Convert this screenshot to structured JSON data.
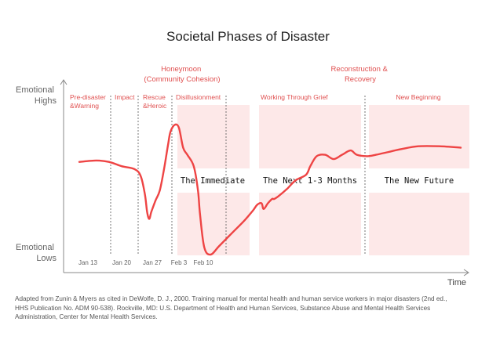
{
  "chart_data": {
    "type": "line",
    "title": "Societal Phases of Disaster",
    "ylabel_top": [
      "Emotional",
      "Highs"
    ],
    "ylabel_bottom": [
      "Emotional",
      "Lows"
    ],
    "xlabel": "Time",
    "x_ticks": [
      "Jan 13",
      "Jan 20",
      "Jan 27",
      "Feb 3",
      "Feb 10"
    ],
    "phases": [
      {
        "label": [
          "Pre-disaster",
          "&Warning"
        ]
      },
      {
        "label": [
          "Impact"
        ]
      },
      {
        "label": [
          "Rescue",
          "&Heroic"
        ]
      },
      {
        "label": [
          "Disillusionment"
        ]
      },
      {
        "label": [
          "Working Through Grief"
        ]
      },
      {
        "label": [
          "New Beginning"
        ]
      }
    ],
    "top_phases": [
      {
        "label": [
          "Honeymoon",
          "(Community Cohesion)"
        ]
      },
      {
        "label": [
          "Reconstruction &",
          "Recovery"
        ]
      }
    ],
    "bands": [
      {
        "label": "The Immediate"
      },
      {
        "label": "The Next 1-3 Months"
      },
      {
        "label": "The New Future"
      }
    ],
    "series": [
      {
        "color": "#ee4444",
        "points": [
          [
            0.0,
            0.65
          ],
          [
            0.04,
            0.66
          ],
          [
            0.07,
            0.65
          ],
          [
            0.1,
            0.62
          ],
          [
            0.13,
            0.6
          ],
          [
            0.145,
            0.55
          ],
          [
            0.155,
            0.42
          ],
          [
            0.16,
            0.3
          ],
          [
            0.165,
            0.25
          ],
          [
            0.17,
            0.3
          ],
          [
            0.18,
            0.38
          ],
          [
            0.19,
            0.45
          ],
          [
            0.2,
            0.6
          ],
          [
            0.21,
            0.78
          ],
          [
            0.215,
            0.86
          ],
          [
            0.225,
            0.91
          ],
          [
            0.235,
            0.89
          ],
          [
            0.245,
            0.75
          ],
          [
            0.255,
            0.7
          ],
          [
            0.27,
            0.62
          ],
          [
            0.28,
            0.45
          ],
          [
            0.285,
            0.28
          ],
          [
            0.295,
            0.05
          ],
          [
            0.31,
            0.0
          ],
          [
            0.33,
            0.06
          ],
          [
            0.36,
            0.15
          ],
          [
            0.39,
            0.24
          ],
          [
            0.41,
            0.31
          ],
          [
            0.42,
            0.35
          ],
          [
            0.43,
            0.36
          ],
          [
            0.435,
            0.32
          ],
          [
            0.445,
            0.36
          ],
          [
            0.455,
            0.39
          ],
          [
            0.46,
            0.39
          ],
          [
            0.47,
            0.41
          ],
          [
            0.49,
            0.46
          ],
          [
            0.51,
            0.52
          ],
          [
            0.535,
            0.56
          ],
          [
            0.545,
            0.62
          ],
          [
            0.56,
            0.69
          ],
          [
            0.58,
            0.7
          ],
          [
            0.6,
            0.67
          ],
          [
            0.62,
            0.7
          ],
          [
            0.64,
            0.73
          ],
          [
            0.655,
            0.7
          ],
          [
            0.68,
            0.69
          ],
          [
            0.7,
            0.7
          ],
          [
            0.73,
            0.72
          ],
          [
            0.76,
            0.74
          ],
          [
            0.8,
            0.76
          ],
          [
            0.85,
            0.76
          ],
          [
            0.9,
            0.75
          ]
        ]
      }
    ]
  },
  "caption": "Adapted from Zunin & Myers as cited in DeWolfe, D. J., 2000. Training manual for mental health and human service workers in major disasters (2nd ed., HHS Publication No. ADM 90-538). Rockville, MD: U.S. Department of Health and Human Services, Substance Abuse and Mental Health Services Administration, Center for Mental Health Services."
}
